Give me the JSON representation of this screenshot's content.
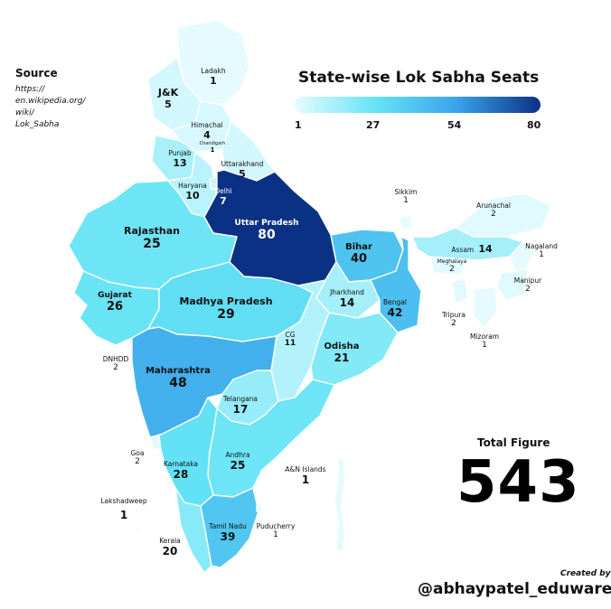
{
  "source": {
    "title": "Source",
    "lines": [
      "https://",
      "en.wikipedia.org/",
      "wiki/",
      "Lok_Sabha"
    ]
  },
  "title": "State-wise Lok Sabha Seats",
  "legend": {
    "ticks": [
      "1",
      "27",
      "54",
      "80"
    ],
    "min": 1,
    "max": 80
  },
  "total": {
    "label": "Total Figure",
    "value": "543"
  },
  "credit": {
    "label": "Created by",
    "handle": "@abhaypatel_eduware"
  },
  "regions": [
    {
      "name": "Ladakh",
      "seats": "1"
    },
    {
      "name": "J&K",
      "seats": "5"
    },
    {
      "name": "Himachal",
      "seats": "4"
    },
    {
      "name": "Chandigarh",
      "seats": "1"
    },
    {
      "name": "Punjab",
      "seats": "13"
    },
    {
      "name": "Uttarakhand",
      "seats": "5"
    },
    {
      "name": "Haryana",
      "seats": "10"
    },
    {
      "name": "Delhi",
      "seats": "7"
    },
    {
      "name": "Uttar Pradesh",
      "seats": "80"
    },
    {
      "name": "Rajasthan",
      "seats": "25"
    },
    {
      "name": "Bihar",
      "seats": "40"
    },
    {
      "name": "Sikkim",
      "seats": "1"
    },
    {
      "name": "Arunachal",
      "seats": "2"
    },
    {
      "name": "Assam",
      "seats": "14"
    },
    {
      "name": "Nagaland",
      "seats": "1"
    },
    {
      "name": "Meghalaya",
      "seats": "2"
    },
    {
      "name": "Manipur",
      "seats": "2"
    },
    {
      "name": "Tripura",
      "seats": "2"
    },
    {
      "name": "Mizoram",
      "seats": "1"
    },
    {
      "name": "Gujarat",
      "seats": "26"
    },
    {
      "name": "Madhya Pradesh",
      "seats": "29"
    },
    {
      "name": "Jharkhand",
      "seats": "14"
    },
    {
      "name": "Bengal",
      "seats": "42"
    },
    {
      "name": "CG",
      "seats": "11"
    },
    {
      "name": "Odisha",
      "seats": "21"
    },
    {
      "name": "DNHDD",
      "seats": "2"
    },
    {
      "name": "Maharashtra",
      "seats": "48"
    },
    {
      "name": "Telangana",
      "seats": "17"
    },
    {
      "name": "Goa",
      "seats": "2"
    },
    {
      "name": "Karnataka",
      "seats": "28"
    },
    {
      "name": "Andhra",
      "seats": "25"
    },
    {
      "name": "A&N Islands",
      "seats": "1"
    },
    {
      "name": "Lakshadweep",
      "seats": "1"
    },
    {
      "name": "Kerala",
      "seats": "20"
    },
    {
      "name": "Tamil Nadu",
      "seats": "39"
    },
    {
      "name": "Puducherry",
      "seats": "1"
    }
  ]
}
